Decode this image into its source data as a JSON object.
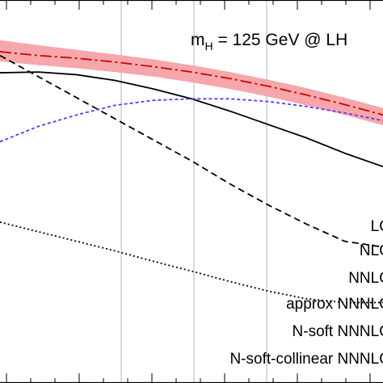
{
  "chart_data": {
    "type": "line",
    "annotation": {
      "m": "m",
      "sub": "H",
      "rest": " = 125 GeV  @  LH"
    },
    "x_frac": [
      0.0,
      0.1,
      0.2,
      0.3,
      0.4,
      0.5,
      0.6,
      0.7,
      0.8,
      0.9,
      1.0
    ],
    "band": {
      "color": "#f6a7ab",
      "upper": [
        0.895,
        0.882,
        0.87,
        0.858,
        0.845,
        0.83,
        0.812,
        0.792,
        0.77,
        0.745,
        0.718
      ],
      "lower": [
        0.84,
        0.83,
        0.822,
        0.812,
        0.8,
        0.785,
        0.768,
        0.748,
        0.725,
        0.7,
        0.673
      ]
    },
    "series": [
      {
        "name": "LO",
        "color": "#000000",
        "dash": "8,5",
        "values": [
          0.855,
          0.8,
          0.745,
          0.69,
          0.635,
          0.58,
          0.52,
          0.465,
          0.415,
          0.37,
          0.355
        ]
      },
      {
        "name": "NLO",
        "color": "#000000",
        "dash": "2,3",
        "values": [
          0.42,
          0.395,
          0.37,
          0.345,
          0.318,
          0.292,
          0.265,
          0.24,
          0.22,
          0.21,
          0.21
        ]
      },
      {
        "name": "NNLO",
        "color": "#000000",
        "dash": "",
        "values": [
          0.81,
          0.812,
          0.805,
          0.79,
          0.768,
          0.742,
          0.71,
          0.675,
          0.64,
          0.6,
          0.565
        ]
      },
      {
        "name": "approx NNNLO",
        "color": "#cc0000",
        "dash": "14,4,3,4",
        "values": [
          0.865,
          0.855,
          0.848,
          0.838,
          0.826,
          0.812,
          0.795,
          0.775,
          0.752,
          0.727,
          0.7
        ]
      },
      {
        "name": "N-soft NNNLO",
        "color": "#6633ff",
        "dash": "4,3",
        "values": [
          0.63,
          0.67,
          0.7,
          0.725,
          0.738,
          0.742,
          0.742,
          0.735,
          0.722,
          0.705,
          0.685
        ]
      }
    ],
    "legend": [
      "LO",
      "NLO",
      "NNLO",
      "approx NNNLO",
      "N-soft NNNLO",
      "N-soft-collinear NNNLO"
    ],
    "grid": "vertical"
  }
}
